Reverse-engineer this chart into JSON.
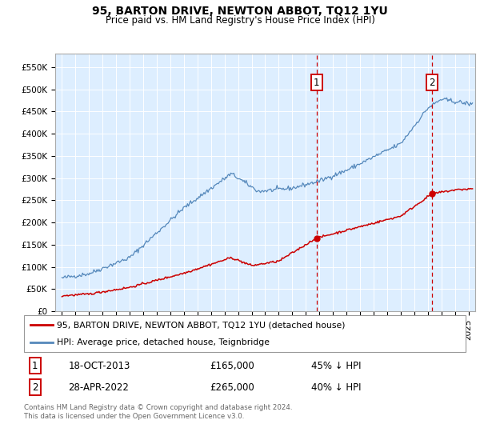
{
  "title": "95, BARTON DRIVE, NEWTON ABBOT, TQ12 1YU",
  "subtitle": "Price paid vs. HM Land Registry's House Price Index (HPI)",
  "ylabel_ticks": [
    "£0",
    "£50K",
    "£100K",
    "£150K",
    "£200K",
    "£250K",
    "£300K",
    "£350K",
    "£400K",
    "£450K",
    "£500K",
    "£550K"
  ],
  "ytick_vals": [
    0,
    50000,
    100000,
    150000,
    200000,
    250000,
    300000,
    350000,
    400000,
    450000,
    500000,
    550000
  ],
  "ylim": [
    0,
    580000
  ],
  "xlim_start": 1994.5,
  "xlim_end": 2025.5,
  "sale1_x": 2013.8,
  "sale1_y": 165000,
  "sale2_x": 2022.33,
  "sale2_y": 265000,
  "legend_label_red": "95, BARTON DRIVE, NEWTON ABBOT, TQ12 1YU (detached house)",
  "legend_label_blue": "HPI: Average price, detached house, Teignbridge",
  "footnote": "Contains HM Land Registry data © Crown copyright and database right 2024.\nThis data is licensed under the Open Government Licence v3.0.",
  "red_color": "#cc0000",
  "blue_color": "#5588bb",
  "bg_color": "#ddeeff",
  "grid_color": "#ffffff",
  "dashed_line_color": "#cc0000",
  "title_fontsize": 10,
  "subtitle_fontsize": 8.5,
  "tick_fontsize": 7.5,
  "ytick_fontsize": 7.5
}
